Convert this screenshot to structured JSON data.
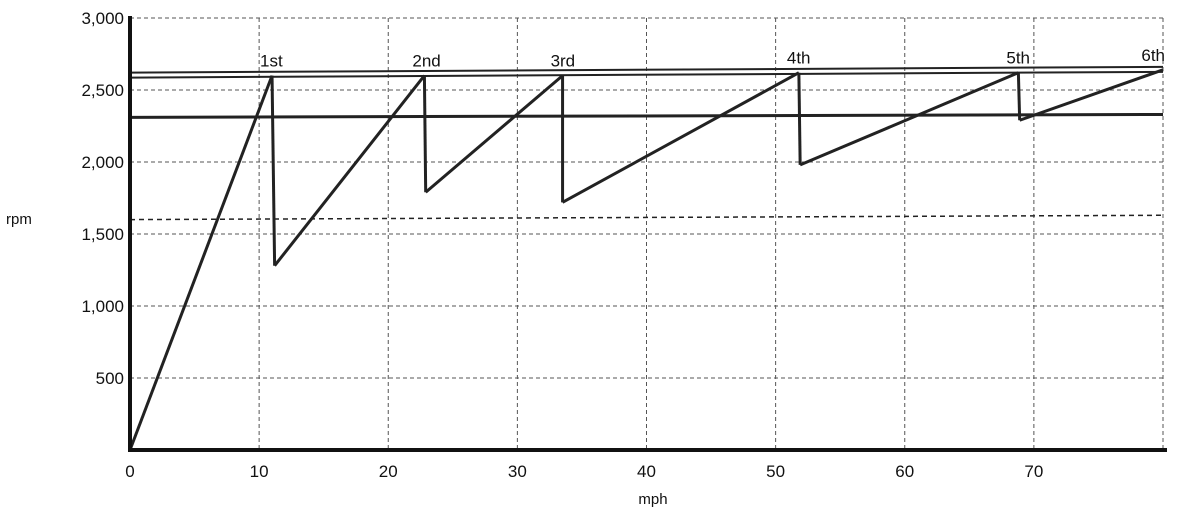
{
  "chart_data": {
    "type": "line",
    "title": "",
    "xlabel": "mph",
    "ylabel": "rpm",
    "xlim": [
      0,
      80
    ],
    "ylim": [
      0,
      3000
    ],
    "x_ticks": [
      0,
      10,
      20,
      30,
      40,
      50,
      60,
      70
    ],
    "x_tick_labels": [
      "0",
      "10",
      "20",
      "30",
      "40",
      "50",
      "60",
      "70"
    ],
    "y_ticks": [
      500,
      1000,
      1500,
      2000,
      2500,
      3000
    ],
    "y_tick_labels": [
      "500",
      "1,000",
      "1,500",
      "2,000",
      "2,500",
      "3,000"
    ],
    "grid": true,
    "series": [
      {
        "points": [
          [
            0,
            0
          ],
          [
            11,
            2600
          ],
          [
            11.2,
            1280
          ],
          [
            22.8,
            2600
          ],
          [
            22.9,
            1790
          ],
          [
            33.5,
            2600
          ],
          [
            33.5,
            1720
          ],
          [
            51.8,
            2620
          ],
          [
            51.9,
            1980
          ],
          [
            68.8,
            2620
          ],
          [
            68.9,
            2290
          ],
          [
            80,
            2640
          ]
        ]
      }
    ],
    "reference_lines": [
      {
        "style": "double",
        "y_start": 2600,
        "y_end": 2640
      },
      {
        "style": "solid",
        "y_start": 2310,
        "y_end": 2330
      },
      {
        "style": "dashed",
        "y_start": 1600,
        "y_end": 1630
      }
    ],
    "gear_labels": [
      {
        "text": "1st",
        "x": 11,
        "y": 2600
      },
      {
        "text": "2nd",
        "x": 22.8,
        "y": 2600
      },
      {
        "text": "3rd",
        "x": 33.5,
        "y": 2600
      },
      {
        "text": "4th",
        "x": 51.8,
        "y": 2620
      },
      {
        "text": "5th",
        "x": 68.8,
        "y": 2620
      },
      {
        "text": "6th",
        "x": 80,
        "y": 2640
      }
    ]
  }
}
